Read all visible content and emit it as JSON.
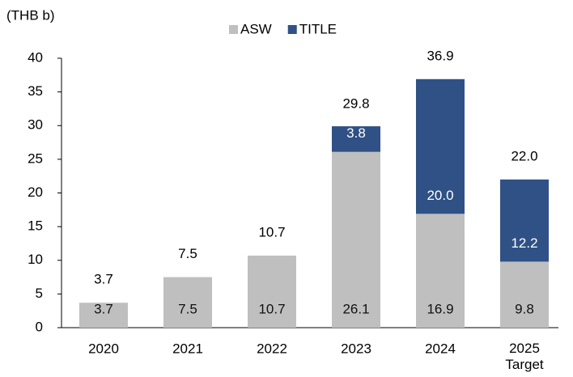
{
  "chart_data": {
    "type": "stacked_bar",
    "y_axis_label": "(THB b)",
    "categories": [
      "2020",
      "2021",
      "2022",
      "2023",
      "2024",
      "2025\nTarget"
    ],
    "series": [
      {
        "name": "ASW",
        "color": "#bfbfbf",
        "values": [
          3.7,
          7.5,
          10.7,
          26.1,
          16.9,
          9.8
        ]
      },
      {
        "name": "TITLE",
        "color": "#2f5185",
        "values": [
          null,
          null,
          null,
          3.8,
          20.0,
          12.2
        ],
        "value_labels": [
          null,
          null,
          null,
          "3.8",
          "20.0",
          "12.2"
        ]
      }
    ],
    "totals": {
      "values": [
        3.7,
        7.5,
        10.7,
        29.8,
        36.9,
        22.0
      ],
      "value_labels": [
        "3.7",
        "7.5",
        "10.7",
        "29.8",
        "36.9",
        "22.0"
      ]
    },
    "ylim": [
      0,
      40
    ],
    "yticks": [
      0,
      5,
      10,
      15,
      20,
      25,
      30,
      35,
      40
    ],
    "grid": false,
    "legend": "top"
  }
}
